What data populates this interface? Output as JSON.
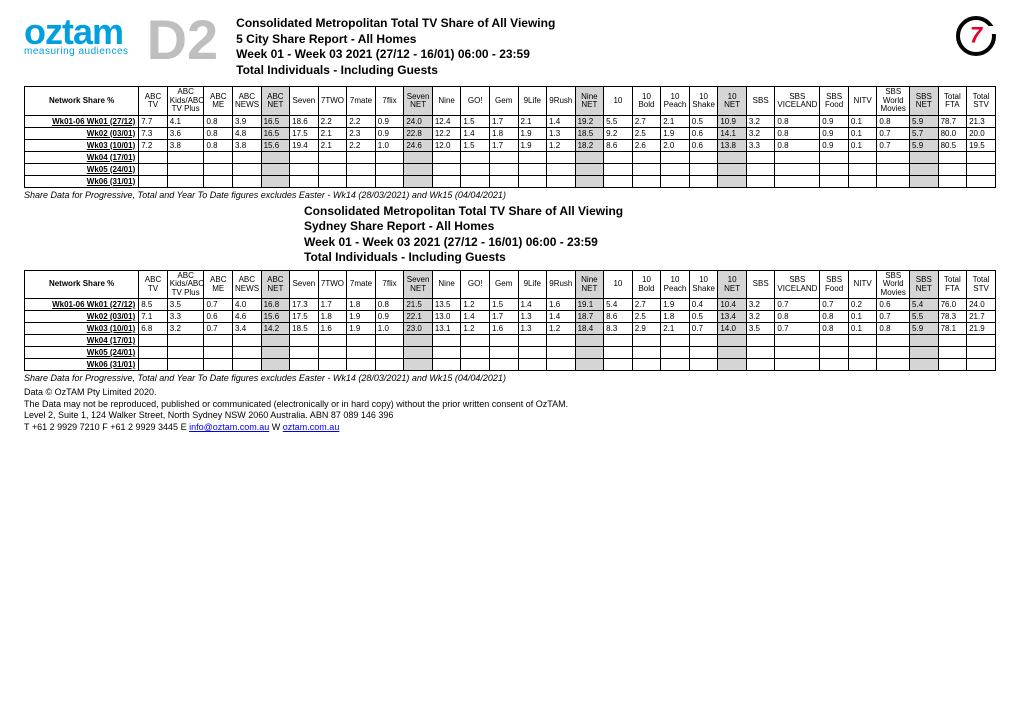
{
  "page_code": "D2",
  "logo": {
    "brand": "oztam",
    "tagline": "measuring audiences"
  },
  "seven_badge": "7",
  "colors": {
    "brand_blue": "#009fdf",
    "page_code_grey": "#bfbfbf",
    "seven_red": "#e4002b",
    "shade": "#d5d5d5"
  },
  "section1": {
    "title_lines": [
      "Consolidated Metropolitan Total TV Share of All Viewing",
      "5 City Share Report - All Homes",
      "Week 01 - Week 03 2021 (27/12 - 16/01) 06:00 - 23:59",
      "Total Individuals - Including Guests"
    ]
  },
  "section2": {
    "title_lines": [
      "Consolidated Metropolitan Total TV Share of All Viewing",
      "Sydney Share Report - All Homes",
      "Week 01 - Week 03 2021 (27/12 - 16/01) 06:00 - 23:59",
      "Total Individuals - Including Guests"
    ]
  },
  "columns": [
    "Network Share %",
    "ABC TV",
    "ABC Kids/ABC TV Plus",
    "ABC ME",
    "ABC NEWS",
    "ABC NET",
    "Seven",
    "7TWO",
    "7mate",
    "7flix",
    "Seven NET",
    "Nine",
    "GO!",
    "Gem",
    "9Life",
    "9Rush",
    "Nine NET",
    "10",
    "10 Bold",
    "10 Peach",
    "10 Shake",
    "10 NET",
    "SBS",
    "SBS VICELAND",
    "SBS Food",
    "NITV",
    "SBS World Movies",
    "SBS NET",
    "Total FTA",
    "Total STV"
  ],
  "shaded_cols": [
    5,
    10,
    16,
    21,
    27
  ],
  "row_labels": [
    "Wk01-06  Wk01 (27/12)",
    "Wk02 (03/01)",
    "Wk03 (10/01)",
    "Wk04 (17/01)",
    "Wk05 (24/01)",
    "Wk06 (31/01)"
  ],
  "table1_rows": [
    [
      "7.7",
      "4.1",
      "0.8",
      "3.9",
      "16.5",
      "18.6",
      "2.2",
      "2.2",
      "0.9",
      "24.0",
      "12.4",
      "1.5",
      "1.7",
      "2.1",
      "1.4",
      "19.2",
      "5.5",
      "2.7",
      "2.1",
      "0.5",
      "10.9",
      "3.2",
      "0.8",
      "0.9",
      "0.1",
      "0.8",
      "5.9",
      "78.7",
      "21.3"
    ],
    [
      "7.3",
      "3.6",
      "0.8",
      "4.8",
      "16.5",
      "17.5",
      "2.1",
      "2.3",
      "0.9",
      "22.8",
      "12.2",
      "1.4",
      "1.8",
      "1.9",
      "1.3",
      "18.5",
      "9.2",
      "2.5",
      "1.9",
      "0.6",
      "14.1",
      "3.2",
      "0.8",
      "0.9",
      "0.1",
      "0.7",
      "5.7",
      "80.0",
      "20.0"
    ],
    [
      "7.2",
      "3.8",
      "0.8",
      "3.8",
      "15.6",
      "19.4",
      "2.1",
      "2.2",
      "1.0",
      "24.6",
      "12.0",
      "1.5",
      "1.7",
      "1.9",
      "1.2",
      "18.2",
      "8.6",
      "2.6",
      "2.0",
      "0.6",
      "13.8",
      "3.3",
      "0.8",
      "0.9",
      "0.1",
      "0.7",
      "5.9",
      "80.5",
      "19.5"
    ],
    [
      "",
      "",
      "",
      "",
      "",
      "",
      "",
      "",
      "",
      "",
      "",
      "",
      "",
      "",
      "",
      "",
      "",
      "",
      "",
      "",
      "",
      "",
      "",
      "",
      "",
      "",
      "",
      "",
      ""
    ],
    [
      "",
      "",
      "",
      "",
      "",
      "",
      "",
      "",
      "",
      "",
      "",
      "",
      "",
      "",
      "",
      "",
      "",
      "",
      "",
      "",
      "",
      "",
      "",
      "",
      "",
      "",
      "",
      "",
      ""
    ],
    [
      "",
      "",
      "",
      "",
      "",
      "",
      "",
      "",
      "",
      "",
      "",
      "",
      "",
      "",
      "",
      "",
      "",
      "",
      "",
      "",
      "",
      "",
      "",
      "",
      "",
      "",
      "",
      "",
      ""
    ]
  ],
  "table2_rows": [
    [
      "8.5",
      "3.5",
      "0.7",
      "4.0",
      "16.8",
      "17.3",
      "1.7",
      "1.8",
      "0.8",
      "21.5",
      "13.5",
      "1.2",
      "1.5",
      "1.4",
      "1.6",
      "19.1",
      "5.4",
      "2.7",
      "1.9",
      "0.4",
      "10.4",
      "3.2",
      "0.7",
      "0.7",
      "0.2",
      "0.6",
      "5.4",
      "76.0",
      "24.0"
    ],
    [
      "7.1",
      "3.3",
      "0.6",
      "4.6",
      "15.6",
      "17.5",
      "1.8",
      "1.9",
      "0.9",
      "22.1",
      "13.0",
      "1.4",
      "1.7",
      "1.3",
      "1.4",
      "18.7",
      "8.6",
      "2.5",
      "1.8",
      "0.5",
      "13.4",
      "3.2",
      "0.8",
      "0.8",
      "0.1",
      "0.7",
      "5.5",
      "78.3",
      "21.7"
    ],
    [
      "6.8",
      "3.2",
      "0.7",
      "3.4",
      "14.2",
      "18.5",
      "1.6",
      "1.9",
      "1.0",
      "23.0",
      "13.1",
      "1.2",
      "1.6",
      "1.3",
      "1.2",
      "18.4",
      "8.3",
      "2.9",
      "2.1",
      "0.7",
      "14.0",
      "3.5",
      "0.7",
      "0.8",
      "0.1",
      "0.8",
      "5.9",
      "78.1",
      "21.9"
    ],
    [
      "",
      "",
      "",
      "",
      "",
      "",
      "",
      "",
      "",
      "",
      "",
      "",
      "",
      "",
      "",
      "",
      "",
      "",
      "",
      "",
      "",
      "",
      "",
      "",
      "",
      "",
      "",
      "",
      ""
    ],
    [
      "",
      "",
      "",
      "",
      "",
      "",
      "",
      "",
      "",
      "",
      "",
      "",
      "",
      "",
      "",
      "",
      "",
      "",
      "",
      "",
      "",
      "",
      "",
      "",
      "",
      "",
      "",
      "",
      ""
    ],
    [
      "",
      "",
      "",
      "",
      "",
      "",
      "",
      "",
      "",
      "",
      "",
      "",
      "",
      "",
      "",
      "",
      "",
      "",
      "",
      "",
      "",
      "",
      "",
      "",
      "",
      "",
      "",
      "",
      ""
    ]
  ],
  "share_note": "Share Data for Progressive, Total and Year To Date figures excludes Easter - Wk14 (28/03/2021) and Wk15 (04/04/2021)",
  "footer": {
    "line1": "Data © OzTAM Pty Limited 2020.",
    "line2": "The Data may not be reproduced, published or communicated (electronically or in hard copy) without the prior written consent of OzTAM.",
    "line3": "Level 2, Suite 1, 124 Walker Street, North Sydney NSW 2060 Australia. ABN 87 089 146 396",
    "tel_label": "T",
    "tel": "+61 2 9929 7210",
    "fax_label": "F",
    "fax": "+61 2 9929 3445",
    "email_label": "E",
    "email": "info@oztam.com.au",
    "web_label": "W",
    "web": "oztam.com.au"
  }
}
